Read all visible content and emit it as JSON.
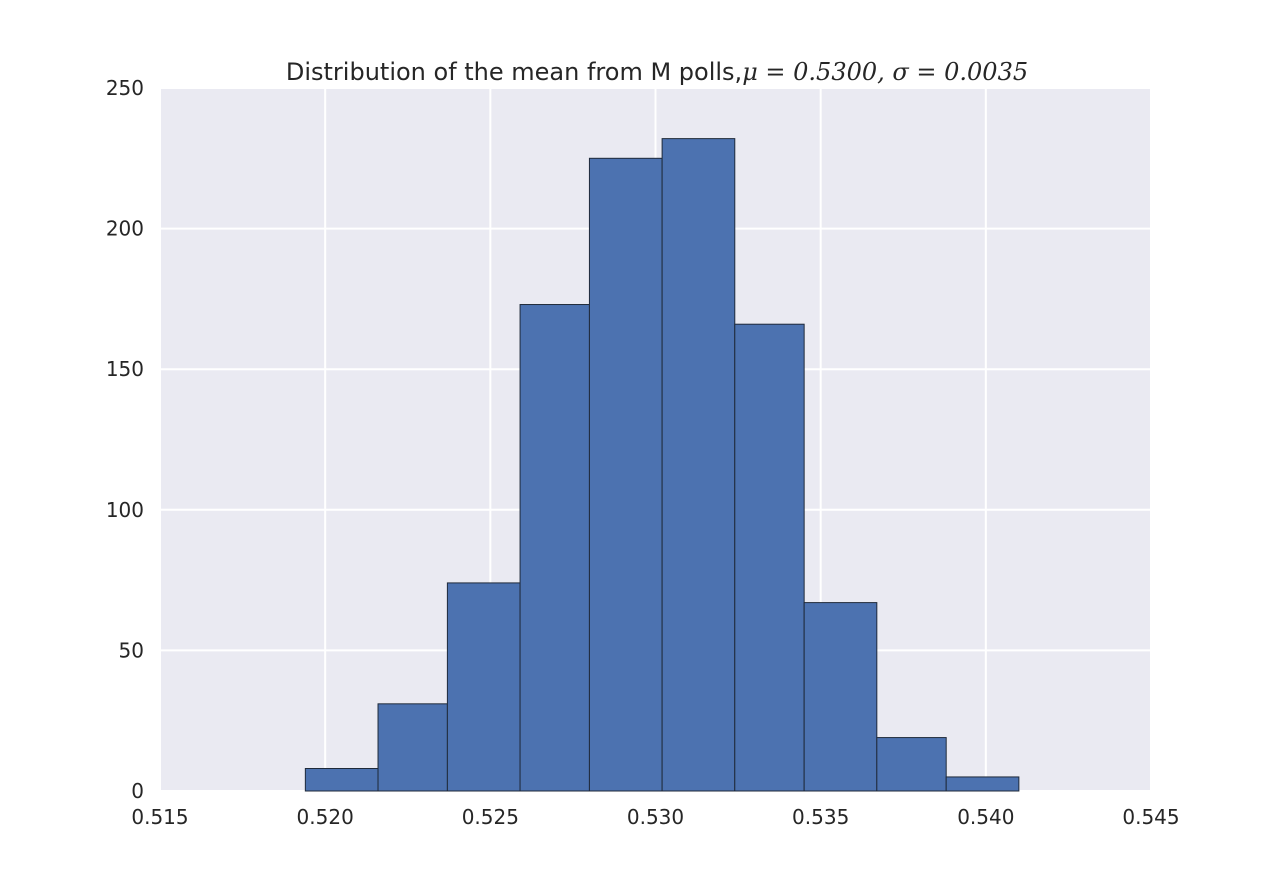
{
  "chart_data": {
    "type": "bar",
    "title": "Distribution of the mean from M polls,",
    "title_math": "μ = 0.5300,  σ = 0.0035",
    "xlabel": "",
    "ylabel": "",
    "xlim": [
      0.515,
      0.545
    ],
    "ylim": [
      0,
      250
    ],
    "xticks": [
      0.515,
      0.52,
      0.525,
      0.53,
      0.535,
      0.54,
      0.545
    ],
    "xtick_labels": [
      "0.515",
      "0.520",
      "0.525",
      "0.530",
      "0.535",
      "0.540",
      "0.545"
    ],
    "yticks": [
      0,
      50,
      100,
      150,
      200,
      250
    ],
    "ytick_labels": [
      "0",
      "50",
      "100",
      "150",
      "200",
      "250"
    ],
    "grid": true,
    "legend": "none",
    "bins": [
      {
        "x0": 0.5194,
        "x1": 0.5216,
        "count": 8
      },
      {
        "x0": 0.5216,
        "x1": 0.5237,
        "count": 31
      },
      {
        "x0": 0.5237,
        "x1": 0.5259,
        "count": 74
      },
      {
        "x0": 0.5259,
        "x1": 0.528,
        "count": 173
      },
      {
        "x0": 0.528,
        "x1": 0.5302,
        "count": 225
      },
      {
        "x0": 0.5302,
        "x1": 0.5324,
        "count": 232
      },
      {
        "x0": 0.5324,
        "x1": 0.5345,
        "count": 166
      },
      {
        "x0": 0.5345,
        "x1": 0.5367,
        "count": 67
      },
      {
        "x0": 0.5367,
        "x1": 0.5388,
        "count": 19
      },
      {
        "x0": 0.5388,
        "x1": 0.541,
        "count": 5
      }
    ],
    "colors": {
      "bar": "#4c72b0",
      "bar_edge": "#1f2a3a",
      "plot_background": "#eaeaf2",
      "grid": "#ffffff",
      "text": "#262626"
    }
  }
}
